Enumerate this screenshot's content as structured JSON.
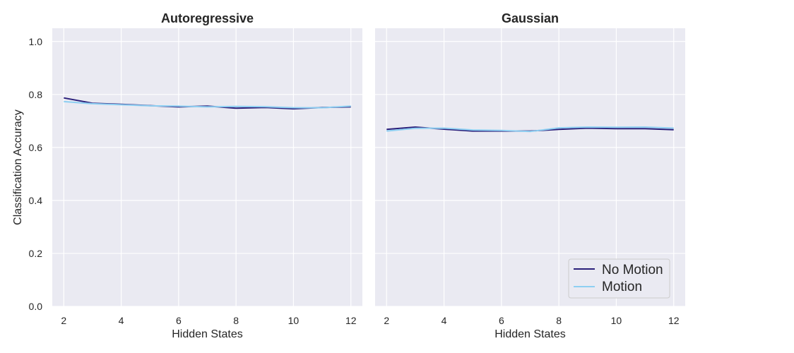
{
  "chart_data": [
    {
      "type": "line",
      "title": "Autoregressive",
      "xlabel": "Hidden States",
      "ylabel": "Classification Accuracy",
      "x": [
        2,
        3,
        4,
        5,
        6,
        7,
        8,
        9,
        10,
        11,
        12
      ],
      "xticks": [
        2,
        4,
        6,
        8,
        10,
        12
      ],
      "xlim": [
        1.6,
        12.4
      ],
      "yticks": [
        "0.0",
        "0.2",
        "0.4",
        "0.6",
        "0.8",
        "1.0"
      ],
      "ylim": [
        0.0,
        1.05
      ],
      "grid": true,
      "series": [
        {
          "name": "No Motion",
          "color": "#2a1f7a",
          "values": [
            0.787,
            0.767,
            0.763,
            0.758,
            0.753,
            0.756,
            0.748,
            0.751,
            0.746,
            0.751,
            0.753
          ]
        },
        {
          "name": "Motion",
          "color": "#8ecff2",
          "values": [
            0.773,
            0.765,
            0.761,
            0.757,
            0.756,
            0.753,
            0.755,
            0.754,
            0.75,
            0.75,
            0.756
          ]
        }
      ]
    },
    {
      "type": "line",
      "title": "Gaussian",
      "xlabel": "Hidden States",
      "ylabel": "",
      "x": [
        2,
        3,
        4,
        5,
        6,
        7,
        8,
        9,
        10,
        11,
        12
      ],
      "xticks": [
        2,
        4,
        6,
        8,
        10,
        12
      ],
      "xlim": [
        1.6,
        12.4
      ],
      "yticks": [
        "0.0",
        "0.2",
        "0.4",
        "0.6",
        "0.8",
        "1.0"
      ],
      "ylim": [
        0.0,
        1.05
      ],
      "grid": true,
      "legend_position": "lower-right",
      "series": [
        {
          "name": "No Motion",
          "color": "#2a1f7a",
          "values": [
            0.668,
            0.677,
            0.669,
            0.662,
            0.662,
            0.662,
            0.668,
            0.673,
            0.671,
            0.671,
            0.667
          ]
        },
        {
          "name": "Motion",
          "color": "#8ecff2",
          "values": [
            0.662,
            0.672,
            0.673,
            0.666,
            0.664,
            0.66,
            0.674,
            0.677,
            0.676,
            0.677,
            0.673
          ]
        }
      ]
    }
  ],
  "legend": [
    {
      "label": "No Motion",
      "color": "#2a1f7a"
    },
    {
      "label": "Motion",
      "color": "#8ecff2"
    }
  ]
}
